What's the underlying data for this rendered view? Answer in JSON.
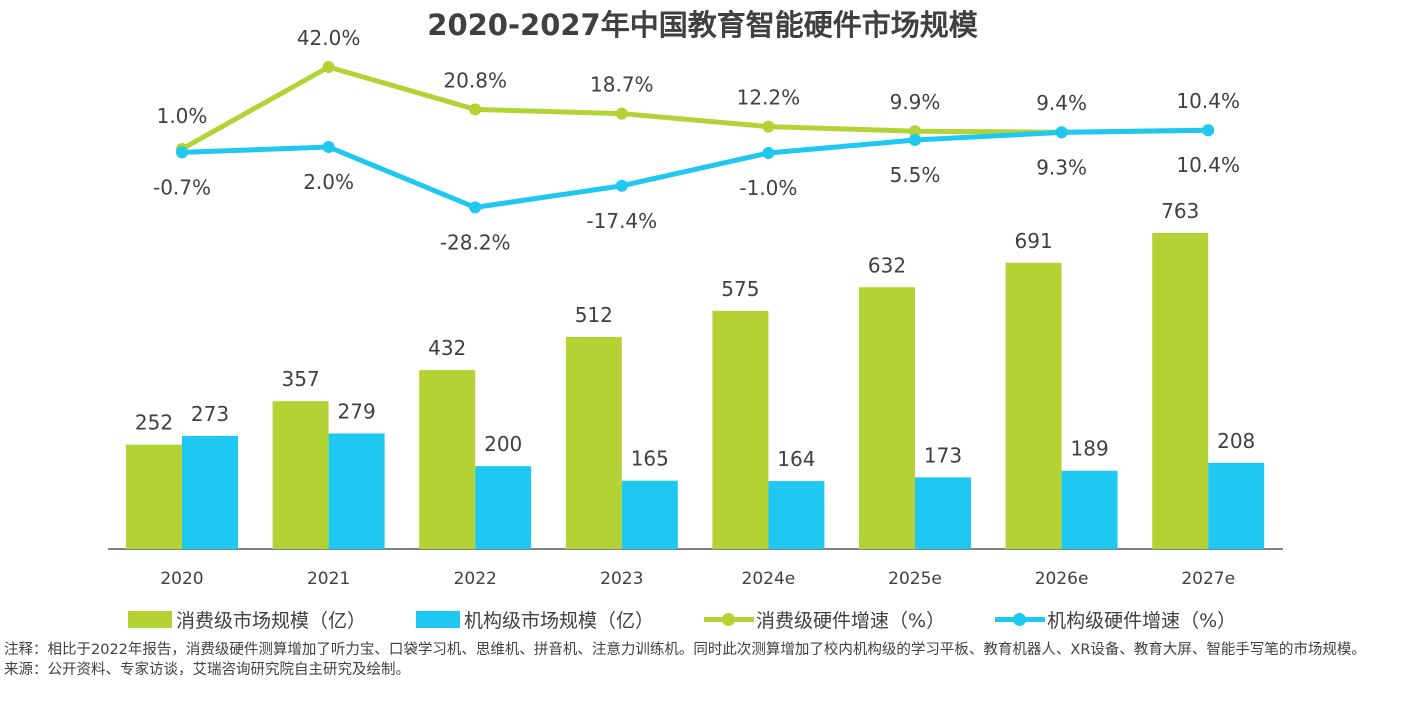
{
  "chart_data": {
    "type": "bar+line",
    "title": "2020-2027年中国教育智能硬件市场规模",
    "categories": [
      "2020",
      "2021",
      "2022",
      "2023",
      "2024e",
      "2025e",
      "2026e",
      "2027e"
    ],
    "bar_series": [
      {
        "name": "消费级市场规模（亿）",
        "color": "#B3D334",
        "values": [
          252,
          357,
          432,
          512,
          575,
          632,
          691,
          763
        ]
      },
      {
        "name": "机构级市场规模（亿）",
        "color": "#1FC8F0",
        "values": [
          273,
          279,
          200,
          165,
          164,
          173,
          189,
          208
        ]
      }
    ],
    "line_series": [
      {
        "name": "消费级硬件增速（%）",
        "color": "#B3D334",
        "values": [
          1.0,
          42.0,
          20.8,
          18.7,
          12.2,
          9.9,
          9.4,
          10.4
        ],
        "labels": [
          "1.0%",
          "42.0%",
          "20.8%",
          "18.7%",
          "12.2%",
          "9.9%",
          "9.4%",
          "10.4%"
        ]
      },
      {
        "name": "机构级硬件增速（%）",
        "color": "#1FC8F0",
        "values": [
          -0.7,
          2.0,
          -28.2,
          -17.4,
          -1.0,
          5.5,
          9.3,
          10.4
        ],
        "labels": [
          "-0.7%",
          "2.0%",
          "-28.2%",
          "-17.4%",
          "-1.0%",
          "5.5%",
          "9.3%",
          "10.4%"
        ]
      }
    ],
    "bar_axis": {
      "ylim": [
        0,
        800
      ],
      "visible": false
    },
    "line_axis": {
      "ylim": [
        -40,
        50
      ],
      "visible": false
    },
    "grid": false,
    "legend_position": "bottom",
    "xlabel": "",
    "ylabel": ""
  },
  "legend": [
    {
      "label": "消费级市场规模（亿）",
      "kind": "bar",
      "color": "#B3D334"
    },
    {
      "label": "机构级市场规模（亿）",
      "kind": "bar",
      "color": "#1FC8F0"
    },
    {
      "label": "消费级硬件增速（%）",
      "kind": "line",
      "color": "#B3D334"
    },
    {
      "label": "机构级硬件增速（%）",
      "kind": "line",
      "color": "#1FC8F0"
    }
  ],
  "notes": {
    "note": "注释：相比于2022年报告，消费级硬件测算增加了听力宝、口袋学习机、思维机、拼音机、注意力训练机。同时此次测算增加了校内机构级的学习平板、教育机器人、XR设备、教育大屏、智能手写笔的市场规模。",
    "source": "来源：公开资料、专家访谈，艾瑞咨询研究院自主研究及绘制。"
  }
}
